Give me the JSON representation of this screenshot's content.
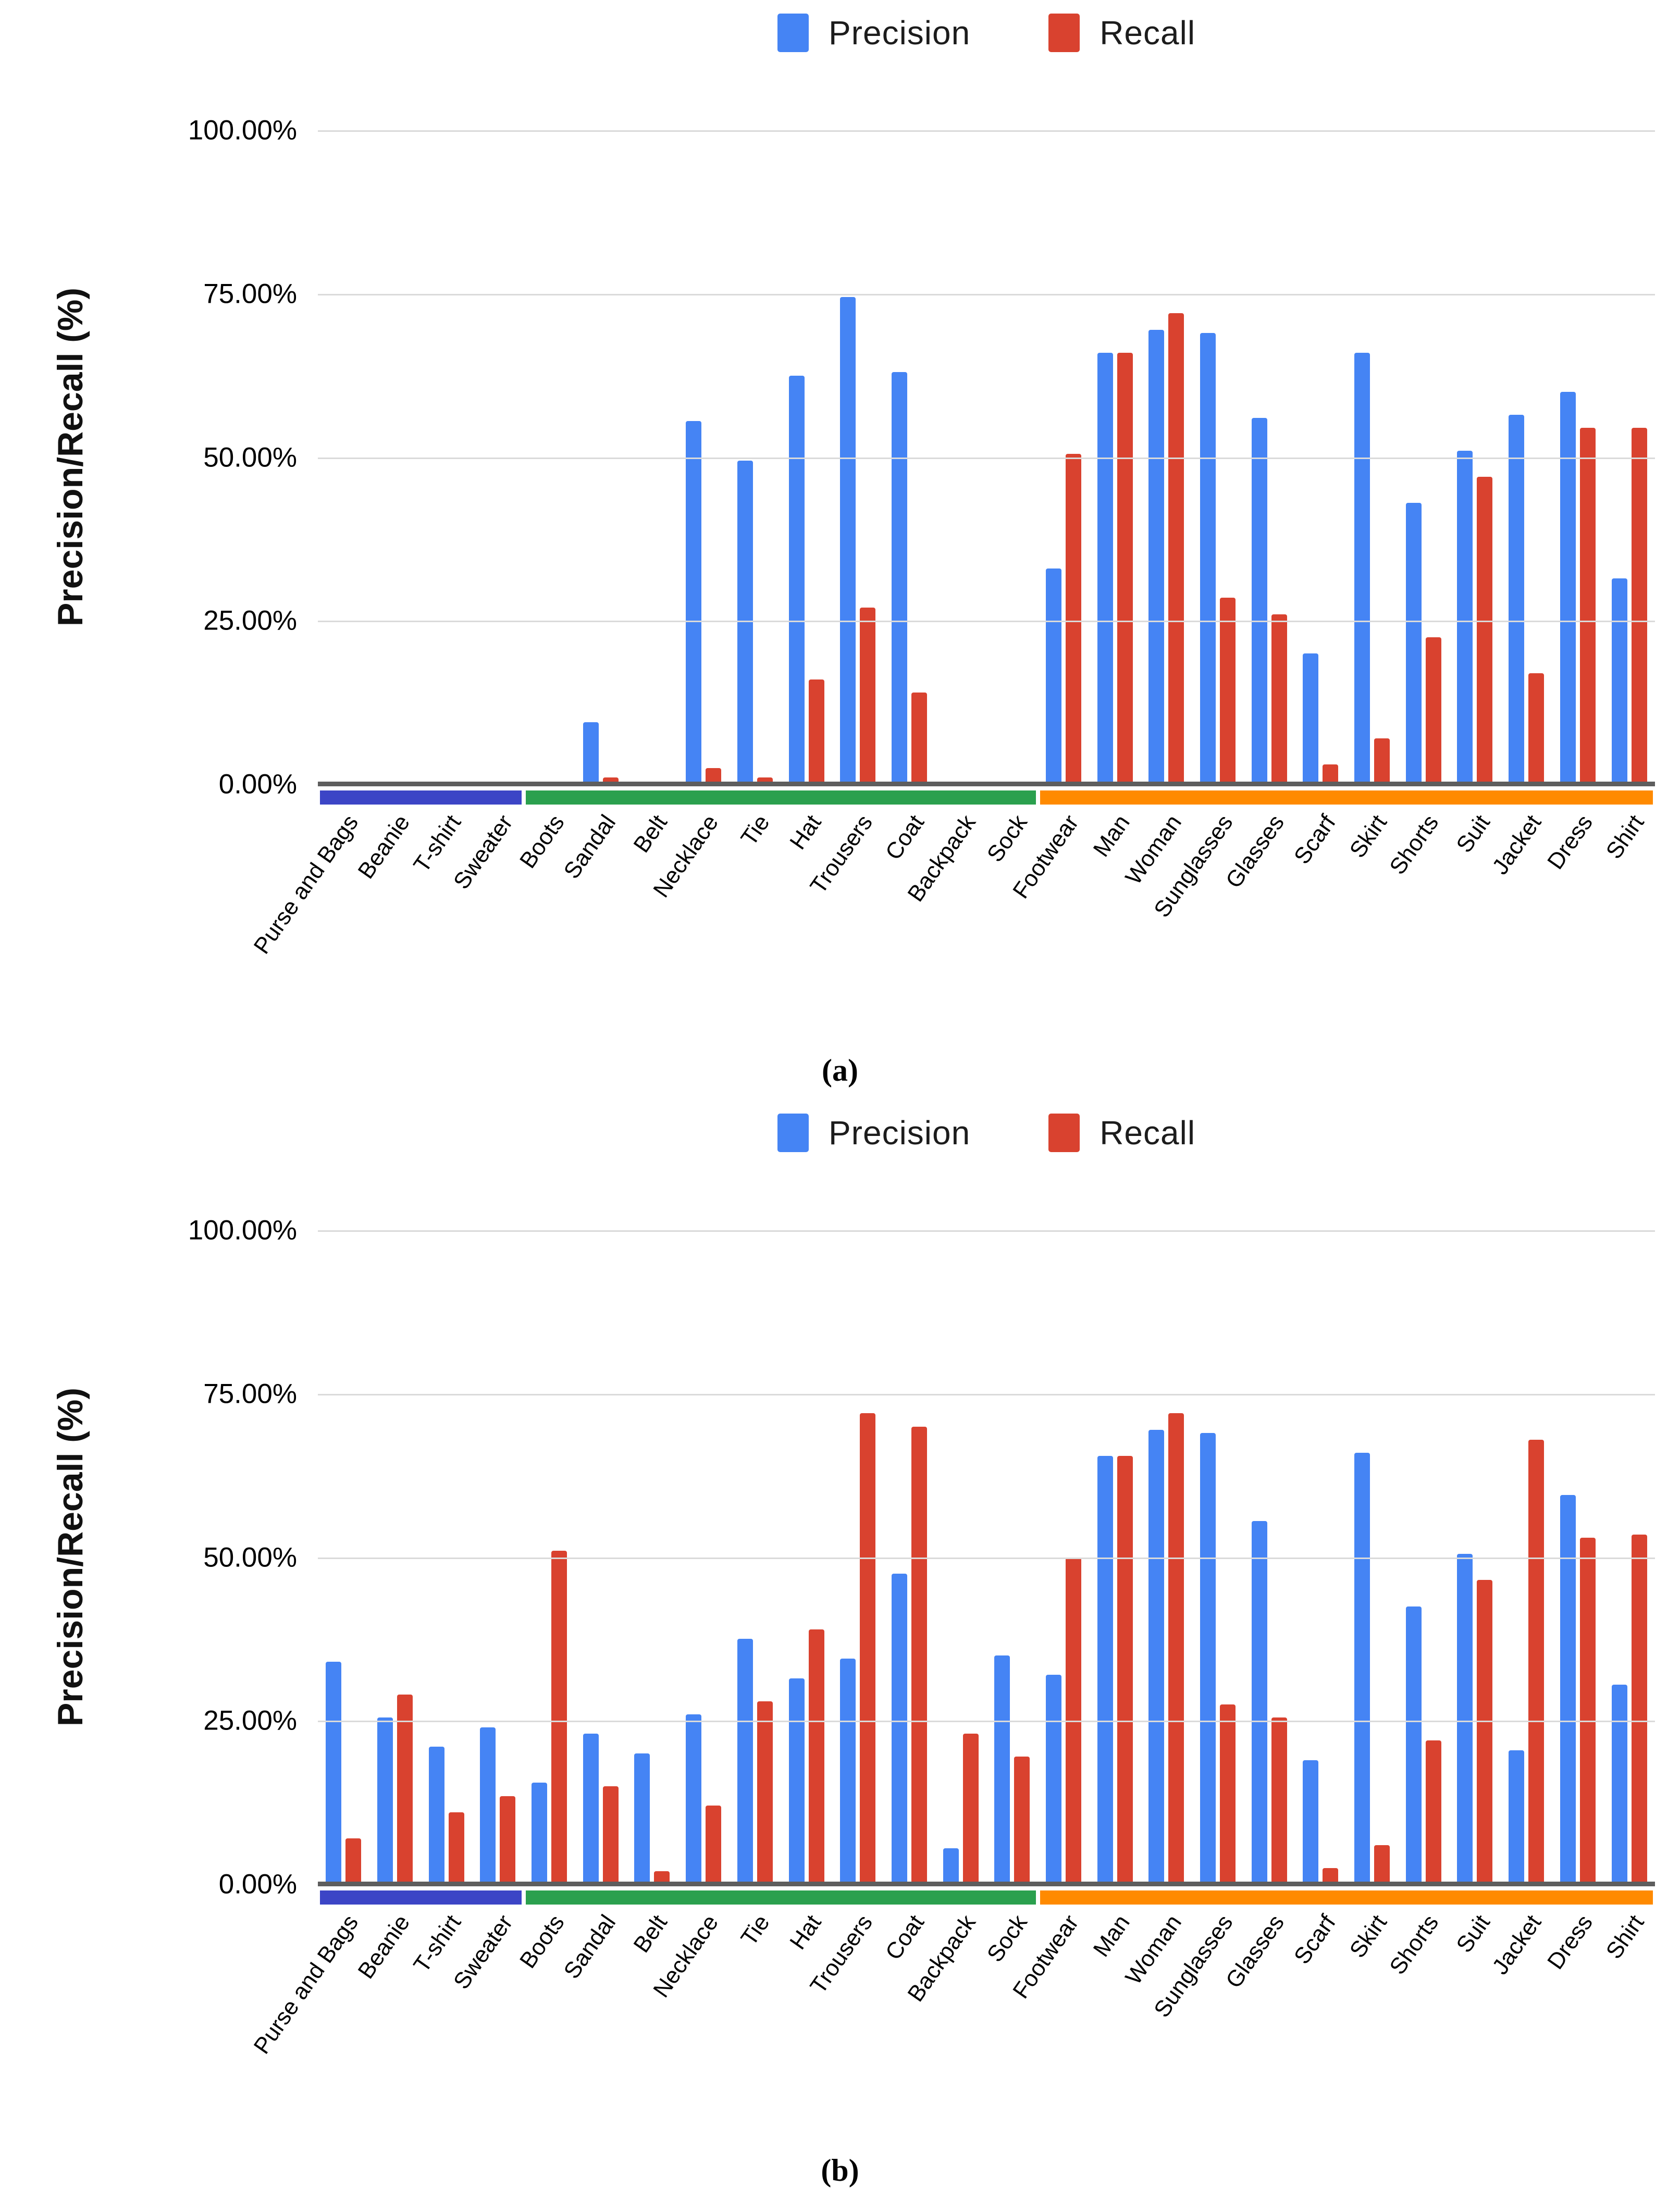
{
  "legend": {
    "items": [
      {
        "label": "Precision",
        "color": "#4584F4"
      },
      {
        "label": "Recall",
        "color": "#D9422F"
      }
    ]
  },
  "y_axis": {
    "title": "Precision/Recall (%)",
    "ticks": [
      {
        "label": "100.00%",
        "value": 100
      },
      {
        "label": "75.00%",
        "value": 75
      },
      {
        "label": "50.00%",
        "value": 50
      },
      {
        "label": "25.00%",
        "value": 25
      },
      {
        "label": "0.00%",
        "value": 0
      }
    ]
  },
  "panels": [
    {
      "caption": "(a)"
    },
    {
      "caption": "(b)"
    }
  ],
  "chart_data": [
    {
      "type": "bar",
      "title": "(a)",
      "ylabel": "Precision/Recall (%)",
      "ylim": [
        0,
        100
      ],
      "grid": true,
      "legend_position": "top-center",
      "categories": [
        "Purse and Bags",
        "Beanie",
        "T-shirt",
        "Sweater",
        "Boots",
        "Sandal",
        "Belt",
        "Necklace",
        "Tie",
        "Hat",
        "Trousers",
        "Coat",
        "Backpack",
        "Sock",
        "Footwear",
        "Man",
        "Woman",
        "Sunglasses",
        "Glasses",
        "Scarf",
        "Skirt",
        "Shorts",
        "Suit",
        "Jacket",
        "Dress",
        "Shirt"
      ],
      "series": [
        {
          "name": "Precision",
          "color": "#4584F4",
          "values": [
            0,
            0,
            0,
            0,
            0,
            9.5,
            0,
            55.5,
            49.5,
            62.5,
            74.5,
            63,
            0,
            0,
            33,
            66,
            69.5,
            69,
            56,
            20,
            66,
            43,
            51,
            56.5,
            60,
            31.5
          ]
        },
        {
          "name": "Recall",
          "color": "#D9422F",
          "values": [
            0,
            0,
            0,
            0,
            0,
            1,
            0,
            2.5,
            1,
            16,
            27,
            14,
            0,
            0,
            50.5,
            66,
            72,
            28.5,
            26,
            3,
            7,
            22.5,
            47,
            17,
            54.5,
            54.5
          ]
        }
      ],
      "bands": [
        {
          "start": 0,
          "end": 4,
          "color": "#3C45C6"
        },
        {
          "start": 4,
          "end": 14,
          "color": "#2BA04E"
        },
        {
          "start": 14,
          "end": 26,
          "color": "#FF8A00"
        }
      ]
    },
    {
      "type": "bar",
      "title": "(b)",
      "ylabel": "Precision/Recall (%)",
      "ylim": [
        0,
        100
      ],
      "grid": true,
      "legend_position": "top-center",
      "categories": [
        "Purse and Bags",
        "Beanie",
        "T-shirt",
        "Sweater",
        "Boots",
        "Sandal",
        "Belt",
        "Necklace",
        "Tie",
        "Hat",
        "Trousers",
        "Coat",
        "Backpack",
        "Sock",
        "Footwear",
        "Man",
        "Woman",
        "Sunglasses",
        "Glasses",
        "Scarf",
        "Skirt",
        "Shorts",
        "Suit",
        "Jacket",
        "Dress",
        "Shirt"
      ],
      "series": [
        {
          "name": "Precision",
          "color": "#4584F4",
          "values": [
            34,
            25.5,
            21,
            24,
            15.5,
            23,
            20,
            26,
            37.5,
            31.5,
            34.5,
            47.5,
            5.5,
            35,
            32,
            65.5,
            69.5,
            69,
            55.5,
            19,
            66,
            42.5,
            50.5,
            20.5,
            59.5,
            30.5
          ]
        },
        {
          "name": "Recall",
          "color": "#D9422F",
          "values": [
            7,
            29,
            11,
            13.5,
            51,
            15,
            2,
            12,
            28,
            39,
            72,
            70,
            23,
            19.5,
            50,
            65.5,
            72,
            27.5,
            25.5,
            2.5,
            6,
            22,
            46.5,
            68,
            53,
            53.5
          ]
        }
      ],
      "bands": [
        {
          "start": 0,
          "end": 4,
          "color": "#3C45C6"
        },
        {
          "start": 4,
          "end": 14,
          "color": "#2BA04E"
        },
        {
          "start": 14,
          "end": 26,
          "color": "#FF8A00"
        }
      ]
    }
  ]
}
